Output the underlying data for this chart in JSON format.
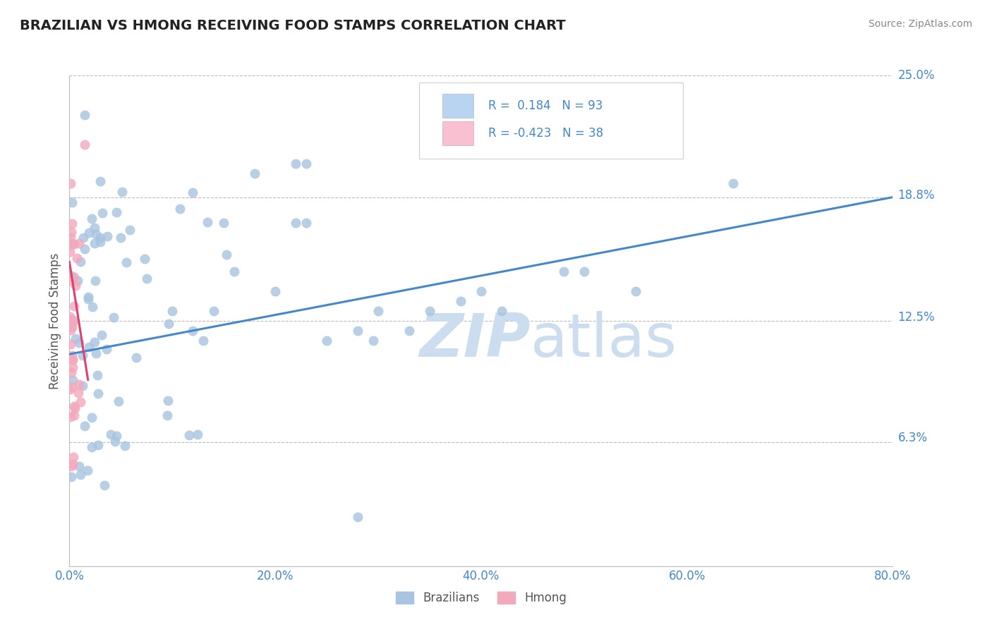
{
  "title": "BRAZILIAN VS HMONG RECEIVING FOOD STAMPS CORRELATION CHART",
  "source": "Source: ZipAtlas.com",
  "ylabel": "Receiving Food Stamps",
  "xlim": [
    0.0,
    0.8
  ],
  "ylim": [
    0.0,
    0.25
  ],
  "xtick_labels": [
    "0.0%",
    "20.0%",
    "40.0%",
    "60.0%",
    "80.0%"
  ],
  "xtick_values": [
    0.0,
    0.2,
    0.4,
    0.6,
    0.8
  ],
  "ytick_labels": [
    "25.0%",
    "18.8%",
    "12.5%",
    "6.3%"
  ],
  "ytick_values": [
    0.25,
    0.188,
    0.125,
    0.063
  ],
  "brazilian_R": 0.184,
  "brazilian_N": 93,
  "hmong_R": -0.423,
  "hmong_N": 38,
  "scatter_blue_color": "#a8c4e0",
  "scatter_pink_color": "#f4a8bc",
  "line_blue_color": "#4488cc",
  "line_pink_color": "#e04070",
  "legend_box_blue": "#b8d4f0",
  "legend_box_pink": "#f8c0d0",
  "text_blue_color": "#4488cc",
  "title_color": "#222222",
  "source_color": "#888888",
  "watermark_color": "#ccddf0",
  "background_color": "#ffffff",
  "grid_color": "#bbbbbb",
  "ylabel_color": "#555555",
  "bottom_legend_color": "#555555",
  "braz_line_start_y": 0.108,
  "braz_line_end_y": 0.188,
  "hmong_line_start_x": 0.0,
  "hmong_line_start_y": 0.155,
  "hmong_line_end_x": 0.018,
  "hmong_line_end_y": 0.095
}
